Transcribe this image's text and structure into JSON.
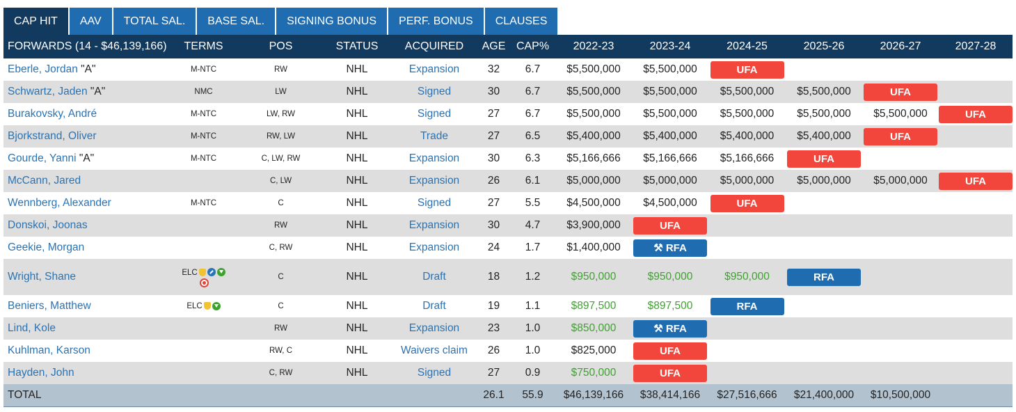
{
  "tabs": [
    "CAP HIT",
    "AAV",
    "TOTAL SAL.",
    "BASE SAL.",
    "SIGNING BONUS",
    "PERF. BONUS",
    "CLAUSES"
  ],
  "active_tab": 0,
  "headers": [
    "FORWARDS (14 - $46,139,166)",
    "TERMS",
    "POS",
    "STATUS",
    "ACQUIRED",
    "AGE",
    "CAP%",
    "2022-23",
    "2023-24",
    "2024-25",
    "2025-26",
    "2026-27",
    "2027-28"
  ],
  "rows": [
    {
      "name": "Eberle, Jordan",
      "tag": "\"A\"",
      "terms": "M-NTC",
      "pos": "RW",
      "status": "NHL",
      "acquired": "Expansion",
      "age": "32",
      "cap_pct": "6.7",
      "years": [
        {
          "v": "$5,500,000"
        },
        {
          "v": "$5,500,000"
        },
        {
          "v": "UFA",
          "pill": "ufa"
        },
        {
          "v": ""
        },
        {
          "v": ""
        },
        {
          "v": ""
        }
      ]
    },
    {
      "name": "Schwartz, Jaden",
      "tag": "\"A\"",
      "terms": "NMC",
      "pos": "LW",
      "status": "NHL",
      "acquired": "Signed",
      "age": "30",
      "cap_pct": "6.7",
      "years": [
        {
          "v": "$5,500,000"
        },
        {
          "v": "$5,500,000"
        },
        {
          "v": "$5,500,000"
        },
        {
          "v": "$5,500,000"
        },
        {
          "v": "UFA",
          "pill": "ufa"
        },
        {
          "v": ""
        }
      ]
    },
    {
      "name": "Burakovsky, André",
      "tag": "",
      "terms": "M-NTC",
      "pos": "LW, RW",
      "status": "NHL",
      "acquired": "Signed",
      "age": "27",
      "cap_pct": "6.7",
      "years": [
        {
          "v": "$5,500,000"
        },
        {
          "v": "$5,500,000"
        },
        {
          "v": "$5,500,000"
        },
        {
          "v": "$5,500,000"
        },
        {
          "v": "$5,500,000"
        },
        {
          "v": "UFA",
          "pill": "ufa"
        }
      ]
    },
    {
      "name": "Bjorkstrand, Oliver",
      "tag": "",
      "terms": "M-NTC",
      "pos": "RW, LW",
      "status": "NHL",
      "acquired": "Trade",
      "age": "27",
      "cap_pct": "6.5",
      "years": [
        {
          "v": "$5,400,000"
        },
        {
          "v": "$5,400,000"
        },
        {
          "v": "$5,400,000"
        },
        {
          "v": "$5,400,000"
        },
        {
          "v": "UFA",
          "pill": "ufa"
        },
        {
          "v": ""
        }
      ]
    },
    {
      "name": "Gourde, Yanni",
      "tag": "\"A\"",
      "terms": "M-NTC",
      "pos": "C, LW, RW",
      "status": "NHL",
      "acquired": "Expansion",
      "age": "30",
      "cap_pct": "6.3",
      "years": [
        {
          "v": "$5,166,666"
        },
        {
          "v": "$5,166,666"
        },
        {
          "v": "$5,166,666"
        },
        {
          "v": "UFA",
          "pill": "ufa"
        },
        {
          "v": ""
        },
        {
          "v": ""
        }
      ]
    },
    {
      "name": "McCann, Jared",
      "tag": "",
      "terms": "",
      "pos": "C, LW",
      "status": "NHL",
      "acquired": "Expansion",
      "age": "26",
      "cap_pct": "6.1",
      "years": [
        {
          "v": "$5,000,000"
        },
        {
          "v": "$5,000,000"
        },
        {
          "v": "$5,000,000"
        },
        {
          "v": "$5,000,000"
        },
        {
          "v": "$5,000,000"
        },
        {
          "v": "UFA",
          "pill": "ufa"
        }
      ]
    },
    {
      "name": "Wennberg, Alexander",
      "tag": "",
      "terms": "M-NTC",
      "pos": "C",
      "status": "NHL",
      "acquired": "Signed",
      "age": "27",
      "cap_pct": "5.5",
      "years": [
        {
          "v": "$4,500,000"
        },
        {
          "v": "$4,500,000"
        },
        {
          "v": "UFA",
          "pill": "ufa"
        },
        {
          "v": ""
        },
        {
          "v": ""
        },
        {
          "v": ""
        }
      ]
    },
    {
      "name": "Donskoi, Joonas",
      "tag": "",
      "terms": "",
      "pos": "RW",
      "status": "NHL",
      "acquired": "Expansion",
      "age": "30",
      "cap_pct": "4.7",
      "years": [
        {
          "v": "$3,900,000"
        },
        {
          "v": "UFA",
          "pill": "ufa"
        },
        {
          "v": ""
        },
        {
          "v": ""
        },
        {
          "v": ""
        },
        {
          "v": ""
        }
      ]
    },
    {
      "name": "Geekie, Morgan",
      "tag": "",
      "terms": "",
      "pos": "C, RW",
      "status": "NHL",
      "acquired": "Expansion",
      "age": "24",
      "cap_pct": "1.7",
      "years": [
        {
          "v": "$1,400,000"
        },
        {
          "v": "RFA",
          "pill": "rfa",
          "arb": true
        },
        {
          "v": ""
        },
        {
          "v": ""
        },
        {
          "v": ""
        },
        {
          "v": ""
        }
      ]
    },
    {
      "name": "Wright, Shane",
      "tag": "",
      "terms": "ELC",
      "icons": [
        "trophy-icon",
        "blue-bonus-icon",
        "green-slide-icon"
      ],
      "icons2": [
        "red-50-icon"
      ],
      "pos": "C",
      "status": "NHL",
      "acquired": "Draft",
      "age": "18",
      "cap_pct": "1.2",
      "tall": true,
      "years": [
        {
          "v": "$950,000",
          "green": true
        },
        {
          "v": "$950,000",
          "green": true
        },
        {
          "v": "$950,000",
          "green": true
        },
        {
          "v": "RFA",
          "pill": "rfa"
        },
        {
          "v": ""
        },
        {
          "v": ""
        }
      ]
    },
    {
      "name": "Beniers, Matthew",
      "tag": "",
      "terms": "ELC",
      "icons": [
        "trophy-icon",
        "green-slide-icon"
      ],
      "pos": "C",
      "status": "NHL",
      "acquired": "Draft",
      "age": "19",
      "cap_pct": "1.1",
      "years": [
        {
          "v": "$897,500",
          "green": true
        },
        {
          "v": "$897,500",
          "green": true
        },
        {
          "v": "RFA",
          "pill": "rfa"
        },
        {
          "v": ""
        },
        {
          "v": ""
        },
        {
          "v": ""
        }
      ]
    },
    {
      "name": "Lind, Kole",
      "tag": "",
      "terms": "",
      "pos": "RW",
      "status": "NHL",
      "acquired": "Expansion",
      "age": "23",
      "cap_pct": "1.0",
      "years": [
        {
          "v": "$850,000",
          "green": true
        },
        {
          "v": "RFA",
          "pill": "rfa",
          "arb": true
        },
        {
          "v": ""
        },
        {
          "v": ""
        },
        {
          "v": ""
        },
        {
          "v": ""
        }
      ]
    },
    {
      "name": "Kuhlman, Karson",
      "tag": "",
      "terms": "",
      "pos": "RW, C",
      "status": "NHL",
      "acquired": "Waivers claim",
      "age": "26",
      "cap_pct": "1.0",
      "years": [
        {
          "v": "$825,000"
        },
        {
          "v": "UFA",
          "pill": "ufa"
        },
        {
          "v": ""
        },
        {
          "v": ""
        },
        {
          "v": ""
        },
        {
          "v": ""
        }
      ]
    },
    {
      "name": "Hayden, John",
      "tag": "",
      "terms": "",
      "pos": "C, RW",
      "status": "NHL",
      "acquired": "Signed",
      "age": "27",
      "cap_pct": "0.9",
      "years": [
        {
          "v": "$750,000",
          "green": true
        },
        {
          "v": "UFA",
          "pill": "ufa"
        },
        {
          "v": ""
        },
        {
          "v": ""
        },
        {
          "v": ""
        },
        {
          "v": ""
        }
      ]
    }
  ],
  "total": {
    "label": "TOTAL",
    "age": "26.1",
    "cap_pct": "55.9",
    "years": [
      "$46,139,166",
      "$38,414,166",
      "$27,516,666",
      "$21,400,000",
      "$10,500,000",
      ""
    ]
  }
}
